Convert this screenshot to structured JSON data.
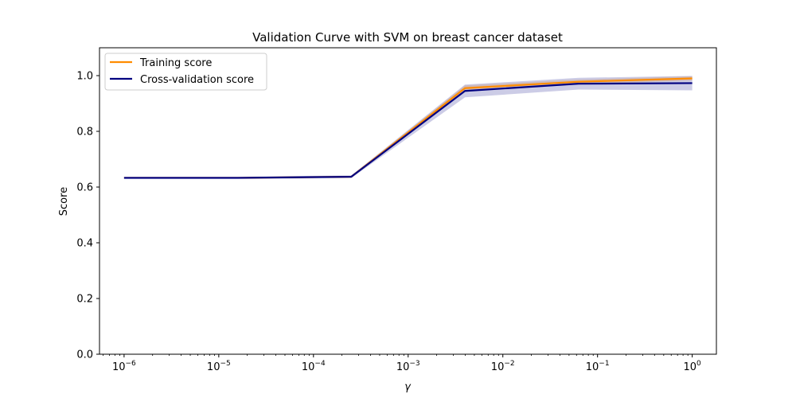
{
  "chart_data": {
    "type": "line",
    "title": "Validation Curve with SVM on breast cancer dataset",
    "xlabel": "γ",
    "ylabel": "Score",
    "xscale": "log",
    "xlim": [
      5.5e-07,
      1.8
    ],
    "ylim": [
      0.0,
      1.1
    ],
    "x_ticks": [
      {
        "value": 1e-06,
        "base": "10",
        "exp": "−6"
      },
      {
        "value": 1e-05,
        "base": "10",
        "exp": "−5"
      },
      {
        "value": 0.0001,
        "base": "10",
        "exp": "−4"
      },
      {
        "value": 0.001,
        "base": "10",
        "exp": "−3"
      },
      {
        "value": 0.01,
        "base": "10",
        "exp": "−2"
      },
      {
        "value": 0.1,
        "base": "10",
        "exp": "−1"
      },
      {
        "value": 1,
        "base": "10",
        "exp": "0"
      }
    ],
    "y_ticks": [
      "0.0",
      "0.2",
      "0.4",
      "0.6",
      "0.8",
      "1.0"
    ],
    "x": [
      1e-06,
      1.585e-05,
      0.000251,
      0.00398,
      0.0631,
      1.0
    ],
    "series": [
      {
        "name": "Training score",
        "color": "#ff8c00",
        "values": [
          0.633,
          0.633,
          0.637,
          0.955,
          0.978,
          0.99
        ],
        "lower": [
          0.631,
          0.631,
          0.634,
          0.945,
          0.97,
          0.982
        ],
        "upper": [
          0.635,
          0.635,
          0.64,
          0.965,
          0.986,
          0.998
        ]
      },
      {
        "name": "Cross-validation score",
        "color": "#000080",
        "values": [
          0.633,
          0.633,
          0.637,
          0.945,
          0.971,
          0.973
        ],
        "lower": [
          0.629,
          0.629,
          0.632,
          0.922,
          0.95,
          0.947
        ],
        "upper": [
          0.637,
          0.637,
          0.642,
          0.968,
          0.992,
          0.999
        ]
      }
    ],
    "grid": false,
    "legend_position": "upper-left"
  }
}
